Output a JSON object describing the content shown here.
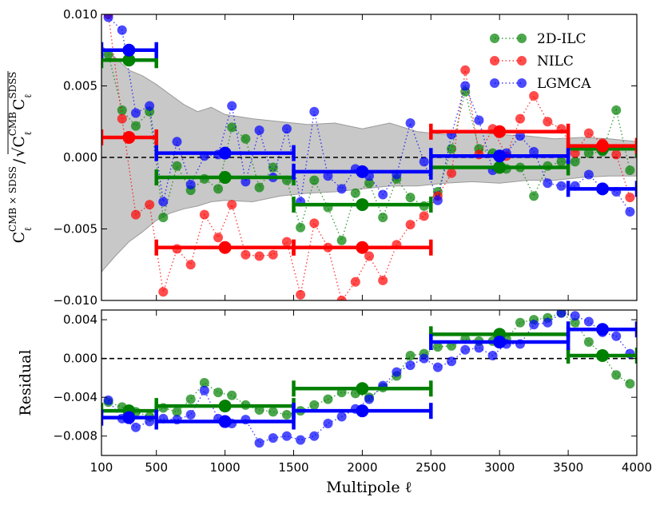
{
  "chart_data": [
    {
      "type": "scatter",
      "panel": "top",
      "ylabel": "C_ℓ^{CMB×SDSS} / √(C_ℓ^{CMB} C_ℓ^{SDSS})",
      "ylabel_parts": {
        "main": "C",
        "sub": "ℓ",
        "sup": "CMB × SDSS",
        "slash": "/",
        "radical": "√",
        "c2": "C",
        "sub2": "ℓ",
        "sup2": "CMB",
        "c3": "C",
        "sub3": "ℓ",
        "sup3": "SDSS"
      },
      "xlim": [
        100,
        4000
      ],
      "ylim": [
        -0.01,
        0.01
      ],
      "yticks": [
        -0.01,
        -0.005,
        0.0,
        0.005,
        0.01
      ],
      "ytick_labels": [
        "−0.010",
        "−0.005",
        "0.000",
        "0.005",
        "0.010"
      ],
      "grid": false,
      "legend_position": "top-right",
      "legend": [
        "2D-ILC",
        "NILC",
        "LGMCA"
      ],
      "reference_line": 0.0,
      "shaded_band": {
        "x": [
          100,
          200,
          300,
          400,
          500,
          600,
          700,
          800,
          900,
          1000,
          1200,
          1400,
          1600,
          1800,
          2000,
          2200,
          2400,
          2600,
          2800,
          3000,
          3200,
          3400,
          3600,
          3800,
          4000
        ],
        "upper": [
          0.0078,
          0.007,
          0.0061,
          0.0057,
          0.0051,
          0.0044,
          0.0037,
          0.0032,
          0.0035,
          0.003,
          0.0027,
          0.0025,
          0.0023,
          0.0024,
          0.002,
          0.0024,
          0.0018,
          0.0016,
          0.0018,
          0.0016,
          0.0015,
          0.0013,
          0.0014,
          0.0013,
          0.0011
        ],
        "lower": [
          -0.008,
          -0.0069,
          -0.0059,
          -0.0052,
          -0.0044,
          -0.0039,
          -0.0036,
          -0.0034,
          -0.0031,
          -0.003,
          -0.0031,
          -0.0027,
          -0.0025,
          -0.0024,
          -0.0022,
          -0.002,
          -0.002,
          -0.0018,
          -0.0017,
          -0.0018,
          -0.0016,
          -0.0016,
          -0.0014,
          -0.0013,
          -0.0013
        ]
      },
      "series": [
        {
          "name": "2D-ILC",
          "color": "#008000",
          "x": [
            150,
            250,
            350,
            450,
            550,
            650,
            750,
            850,
            950,
            1050,
            1150,
            1250,
            1350,
            1450,
            1550,
            1650,
            1750,
            1850,
            1950,
            2050,
            2150,
            2250,
            2350,
            2450,
            2550,
            2650,
            2750,
            2850,
            2950,
            3050,
            3150,
            3250,
            3350,
            3450,
            3550,
            3650,
            3750,
            3850,
            3950
          ],
          "y": [
            0.0072,
            0.0033,
            0.0022,
            0.0032,
            -0.0042,
            -0.0006,
            -0.0023,
            -0.0015,
            -0.0022,
            0.0021,
            0.0013,
            -0.0021,
            -0.0007,
            -0.0016,
            -0.0049,
            -0.0016,
            -0.0035,
            -0.0058,
            -0.0025,
            -0.0018,
            -0.0042,
            -0.0015,
            -0.0028,
            -0.0034,
            -0.0024,
            0.0006,
            0.0046,
            0.0006,
            0.0003,
            -0.0008,
            -0.0007,
            -0.0027,
            -0.0006,
            -0.0003,
            -0.0003,
            0.0003,
            0.0004,
            0.0033,
            -0.0009
          ]
        },
        {
          "name": "NILC",
          "color": "#ff0000",
          "x": [
            150,
            250,
            350,
            450,
            550,
            650,
            750,
            850,
            950,
            1050,
            1150,
            1250,
            1350,
            1450,
            1550,
            1650,
            1750,
            1850,
            1950,
            2050,
            2150,
            2250,
            2350,
            2450,
            2550,
            2650,
            2750,
            2850,
            2950,
            3050,
            3150,
            3250,
            3350,
            3450,
            3550,
            3650,
            3750,
            3850,
            3950
          ],
          "y": [
            0.01,
            0.0027,
            -0.004,
            -0.0033,
            -0.0094,
            -0.0064,
            -0.0075,
            -0.004,
            -0.0056,
            -0.0033,
            -0.0068,
            -0.0069,
            -0.0068,
            -0.0059,
            -0.0096,
            -0.0046,
            -0.0063,
            -0.01,
            -0.0087,
            -0.0069,
            -0.0086,
            -0.0061,
            -0.0047,
            -0.0041,
            -0.0027,
            -0.0011,
            0.0061,
            0.0002,
            0.002,
            0.0001,
            0.0027,
            0.0043,
            0.0025,
            0.002,
            0.0003,
            0.0017,
            0.001,
            0.0002,
            -0.0028
          ]
        },
        {
          "name": "LGMCA",
          "color": "#0000ff",
          "x": [
            150,
            250,
            350,
            450,
            550,
            650,
            750,
            850,
            950,
            1050,
            1150,
            1250,
            1350,
            1450,
            1550,
            1650,
            1750,
            1850,
            1950,
            2050,
            2150,
            2250,
            2350,
            2450,
            2550,
            2650,
            2750,
            2850,
            2950,
            3050,
            3150,
            3250,
            3350,
            3450,
            3550,
            3650,
            3750,
            3850,
            3950
          ],
          "y": [
            0.0098,
            0.0089,
            0.0031,
            0.0036,
            -0.0031,
            0.0011,
            -0.0019,
            0.0001,
            0.0002,
            0.0036,
            -0.0017,
            0.0019,
            -0.0014,
            0.002,
            -0.0031,
            0.0032,
            -0.0013,
            -0.0022,
            -0.0008,
            -0.0013,
            -0.0026,
            -0.0012,
            0.0024,
            -0.0003,
            -0.003,
            0.0016,
            0.005,
            0.0026,
            -0.0009,
            0.0003,
            0.0015,
            0.0004,
            -0.0018,
            -0.002,
            -0.002,
            -0.0012,
            -0.0022,
            -0.0024,
            -0.0038
          ]
        }
      ],
      "binned": [
        {
          "name": "2D-ILC",
          "color": "#008000",
          "bins": [
            [
              100,
              500,
              0.0068
            ],
            [
              500,
              1500,
              -0.0014
            ],
            [
              1500,
              2500,
              -0.0033
            ],
            [
              2500,
              3500,
              -0.0007
            ],
            [
              3500,
              4000,
              0.0006
            ]
          ]
        },
        {
          "name": "NILC",
          "color": "#ff0000",
          "bins": [
            [
              100,
              500,
              0.0014
            ],
            [
              500,
              1500,
              -0.0063
            ],
            [
              1500,
              2500,
              -0.0063
            ],
            [
              2500,
              3500,
              0.0018
            ],
            [
              3500,
              4000,
              0.0008
            ]
          ]
        },
        {
          "name": "LGMCA",
          "color": "#0000ff",
          "bins": [
            [
              100,
              500,
              0.0075
            ],
            [
              500,
              1500,
              0.0003
            ],
            [
              1500,
              2500,
              -0.001
            ],
            [
              2500,
              3500,
              0.0001
            ],
            [
              3500,
              4000,
              -0.0022
            ]
          ]
        }
      ]
    },
    {
      "type": "scatter",
      "panel": "bottom",
      "ylabel": "Residual",
      "xlabel": "Multipole ℓ",
      "xlim": [
        100,
        4000
      ],
      "ylim": [
        -0.01,
        0.005
      ],
      "xticks": [
        100,
        500,
        1000,
        1500,
        2000,
        2500,
        3000,
        3500,
        4000
      ],
      "xtick_labels": [
        "100",
        "500",
        "1000",
        "1500",
        "2000",
        "2500",
        "3000",
        "3500",
        "4000"
      ],
      "yticks": [
        -0.008,
        -0.004,
        0.0,
        0.004
      ],
      "ytick_labels": [
        "−0.008",
        "−0.004",
        "0.000",
        "0.004"
      ],
      "grid": false,
      "reference_line": 0.0,
      "series": [
        {
          "name": "2D-ILC",
          "color": "#008000",
          "x": [
            150,
            250,
            350,
            450,
            550,
            650,
            750,
            850,
            950,
            1050,
            1150,
            1250,
            1350,
            1450,
            1550,
            1650,
            1750,
            1850,
            1950,
            2050,
            2150,
            2250,
            2350,
            2450,
            2550,
            2650,
            2750,
            2850,
            2950,
            3050,
            3150,
            3250,
            3350,
            3450,
            3550,
            3650,
            3750,
            3850,
            3950
          ],
          "y": [
            -0.0045,
            -0.005,
            -0.0055,
            -0.006,
            -0.0051,
            -0.0055,
            -0.0042,
            -0.0025,
            -0.0035,
            -0.0038,
            -0.0048,
            -0.0053,
            -0.0055,
            -0.0058,
            -0.0054,
            -0.0048,
            -0.0042,
            -0.0035,
            -0.0036,
            -0.004,
            -0.003,
            -0.0018,
            0.0003,
            0.0005,
            0.0012,
            0.0013,
            0.002,
            0.0018,
            0.0018,
            0.002,
            0.0037,
            0.004,
            0.0042,
            0.0047,
            0.0037,
            0.0017,
            0.0004,
            -0.0017,
            -0.0026
          ]
        },
        {
          "name": "LGMCA",
          "color": "#0000ff",
          "x": [
            150,
            250,
            350,
            450,
            550,
            650,
            750,
            850,
            950,
            1050,
            1150,
            1250,
            1350,
            1450,
            1550,
            1650,
            1750,
            1850,
            1950,
            2050,
            2150,
            2250,
            2350,
            2450,
            2550,
            2650,
            2750,
            2850,
            2950,
            3050,
            3150,
            3250,
            3350,
            3450,
            3550,
            3650,
            3750,
            3850,
            3950
          ],
          "y": [
            -0.0043,
            -0.0062,
            -0.0071,
            -0.0065,
            -0.0062,
            -0.0063,
            -0.0058,
            -0.0033,
            -0.0062,
            -0.0067,
            -0.0063,
            -0.0087,
            -0.0082,
            -0.008,
            -0.0084,
            -0.008,
            -0.0067,
            -0.006,
            -0.0052,
            -0.0042,
            -0.0028,
            -0.0014,
            -0.0007,
            0.0,
            -0.0009,
            -0.0003,
            0.0009,
            0.0011,
            0.0003,
            0.0015,
            0.0015,
            0.0035,
            0.0037,
            0.0047,
            0.0044,
            0.0038,
            0.0027,
            0.0023,
            0.0005
          ]
        }
      ],
      "binned": [
        {
          "name": "2D-ILC",
          "color": "#008000",
          "bins": [
            [
              100,
              500,
              -0.0054
            ],
            [
              500,
              1500,
              -0.0049
            ],
            [
              1500,
              2500,
              -0.0031
            ],
            [
              2500,
              3500,
              0.0025
            ],
            [
              3500,
              4000,
              0.0003
            ]
          ]
        },
        {
          "name": "LGMCA",
          "color": "#0000ff",
          "bins": [
            [
              100,
              500,
              -0.0061
            ],
            [
              500,
              1500,
              -0.0065
            ],
            [
              1500,
              2500,
              -0.0054
            ],
            [
              2500,
              3500,
              0.0017
            ],
            [
              3500,
              4000,
              0.003
            ]
          ]
        }
      ]
    }
  ]
}
